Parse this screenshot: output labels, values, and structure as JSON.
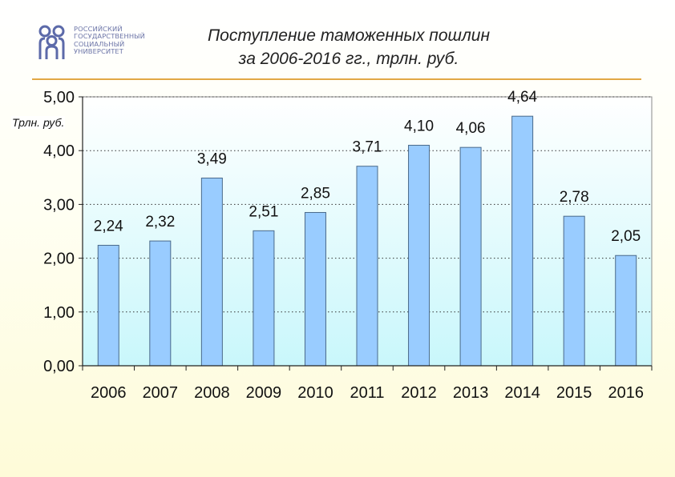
{
  "logo": {
    "lines": [
      "Российский",
      "государственный",
      "социальный",
      "университет"
    ],
    "mark_icon": "people-group-icon",
    "color": "#5c6aa9"
  },
  "chart_data": {
    "type": "bar",
    "title_lines": [
      "Поступление таможенных пошлин",
      "за 2006-2016 гг., трлн. руб."
    ],
    "ylabel": "Трлн.  руб.",
    "xlabel": "",
    "categories": [
      "2006",
      "2007",
      "2008",
      "2009",
      "2010",
      "2011",
      "2012",
      "2013",
      "2014",
      "2015",
      "2016"
    ],
    "values": [
      2.24,
      2.32,
      3.49,
      2.51,
      2.85,
      3.71,
      4.1,
      4.06,
      4.64,
      2.78,
      2.05
    ],
    "value_labels": [
      "2,24",
      "2,32",
      "3,49",
      "2,51",
      "2,85",
      "3,71",
      "4,10",
      "4,06",
      "4,64",
      "2,78",
      "2,05"
    ],
    "yticks": [
      0,
      1,
      2,
      3,
      4,
      5
    ],
    "ytick_labels": [
      "0,00",
      "1,00",
      "2,00",
      "3,00",
      "4,00",
      "5,00"
    ],
    "ylim": [
      0,
      5
    ],
    "grid": true,
    "grid_style": "dotted",
    "legend": false,
    "colors": {
      "bar_fill": "#99ccff",
      "bar_stroke": "#4a6a8a",
      "plot_top": "#ffffff",
      "plot_bottom": "#c9f7fb",
      "axis": "#222222",
      "accent_rule": "#e2a844"
    }
  }
}
